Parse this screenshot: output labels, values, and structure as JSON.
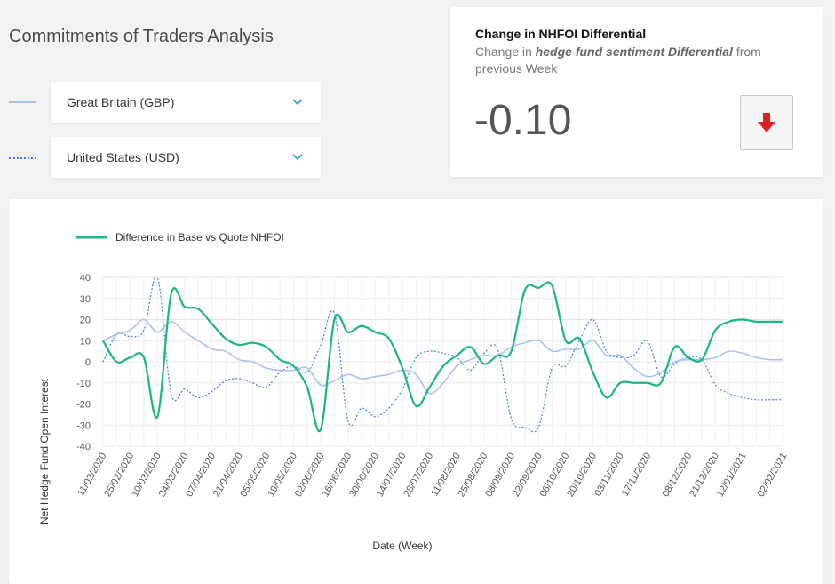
{
  "page": {
    "title": "Commitments of Traders Analysis"
  },
  "selectors": [
    {
      "label": "Great Britain (GBP)",
      "line_style": "solid",
      "color": "#a8c4ee"
    },
    {
      "label": "United States (USD)",
      "line_style": "dotted",
      "color": "#3f7fe0"
    }
  ],
  "card": {
    "title": "Change in NHFOI Differential",
    "subtitle_prefix": "Change in ",
    "subtitle_emphasis": "hedge fund sentiment Differential",
    "subtitle_suffix": " from previous Week",
    "value": "-0.10",
    "trend_icon": "arrow-down-icon",
    "trend_color": "#e02020"
  },
  "chart_data": {
    "type": "line",
    "legend": [
      "Difference in Base vs Quote NHFOI"
    ],
    "ylabel": "Net Hedge Fund Open Interest",
    "xlabel": "Date (Week)",
    "ylim": [
      -40,
      40
    ],
    "yticks": [
      40,
      30,
      20,
      10,
      0,
      -10,
      -20,
      -30,
      -40
    ],
    "grid": true,
    "legend_position": "top-left",
    "x": [
      "11/02/2020",
      "18/02/2020",
      "25/02/2020",
      "03/03/2020",
      "10/03/2020",
      "17/03/2020",
      "24/03/2020",
      "31/03/2020",
      "07/04/2020",
      "14/04/2020",
      "21/04/2020",
      "28/04/2020",
      "05/05/2020",
      "12/05/2020",
      "19/05/2020",
      "26/05/2020",
      "02/06/2020",
      "09/06/2020",
      "16/06/2020",
      "23/06/2020",
      "30/06/2020",
      "07/07/2020",
      "14/07/2020",
      "21/07/2020",
      "28/07/2020",
      "04/08/2020",
      "11/08/2020",
      "18/08/2020",
      "25/08/2020",
      "01/09/2020",
      "08/09/2020",
      "15/09/2020",
      "22/09/2020",
      "29/09/2020",
      "06/10/2020",
      "13/10/2020",
      "20/10/2020",
      "27/10/2020",
      "03/11/2020",
      "10/11/2020",
      "17/11/2020",
      "24/11/2020",
      "01/12/2020",
      "08/12/2020",
      "15/12/2020",
      "21/12/2020",
      "05/01/2021",
      "12/01/2021",
      "19/01/2021",
      "26/01/2021",
      "02/02/2021"
    ],
    "xtick_labels": [
      "11/02/2020",
      "25/02/2020",
      "10/03/2020",
      "24/03/2020",
      "07/04/2020",
      "21/04/2020",
      "05/05/2020",
      "19/05/2020",
      "02/06/2020",
      "16/06/2020",
      "30/06/2020",
      "14/07/2020",
      "28/07/2020",
      "11/08/2020",
      "25/08/2020",
      "08/09/2020",
      "22/09/2020",
      "06/10/2020",
      "20/10/2020",
      "03/11/2020",
      "17/11/2020",
      "08/12/2020",
      "21/12/2020",
      "12/01/2021",
      "02/02/2021"
    ],
    "series": [
      {
        "name": "Difference in Base vs Quote NHFOI",
        "style": "solid",
        "color": "#1db585",
        "values": [
          10,
          0,
          2,
          2,
          -26,
          32,
          26,
          25,
          18,
          11,
          8,
          9,
          7,
          1,
          -2,
          -12,
          -32,
          20,
          14,
          17,
          14,
          11,
          -3,
          -21,
          -12,
          -2,
          3,
          7,
          -1,
          3,
          5,
          34,
          35,
          36,
          10,
          11,
          -5,
          -17,
          -10,
          -10,
          -10,
          -10,
          7,
          2,
          1,
          15,
          19,
          20,
          19,
          19,
          19
        ]
      },
      {
        "name": "Great Britain (GBP)",
        "style": "solid",
        "color": "#a8c4ee",
        "values": [
          10,
          13,
          15,
          20,
          14,
          19,
          14,
          10,
          6,
          5,
          1,
          0,
          -3,
          -4,
          -4,
          -3,
          -11,
          -9,
          -6,
          -8,
          -7,
          -6,
          -4,
          -6,
          -15,
          -10,
          -2,
          1,
          3,
          3,
          7,
          9,
          10,
          5,
          6,
          6,
          10,
          3,
          3,
          -3,
          -7,
          -5,
          0,
          1,
          1,
          2,
          5,
          4,
          2,
          1,
          1
        ]
      },
      {
        "name": "United States (USD)",
        "style": "dotted",
        "color": "#3f7fe0",
        "values": [
          0,
          13,
          12,
          15,
          40,
          -15,
          -13,
          -17,
          -14,
          -9,
          -8,
          -10,
          -12,
          -5,
          -2,
          -5,
          8,
          23,
          -28,
          -22,
          -26,
          -22,
          -13,
          2,
          5,
          4,
          2,
          -4,
          4,
          6,
          -27,
          -31,
          -31,
          -3,
          -2,
          10,
          20,
          5,
          2,
          3,
          10,
          -7,
          -1,
          2,
          1,
          -11,
          -15,
          -17,
          -18,
          -18,
          -18
        ]
      }
    ]
  }
}
